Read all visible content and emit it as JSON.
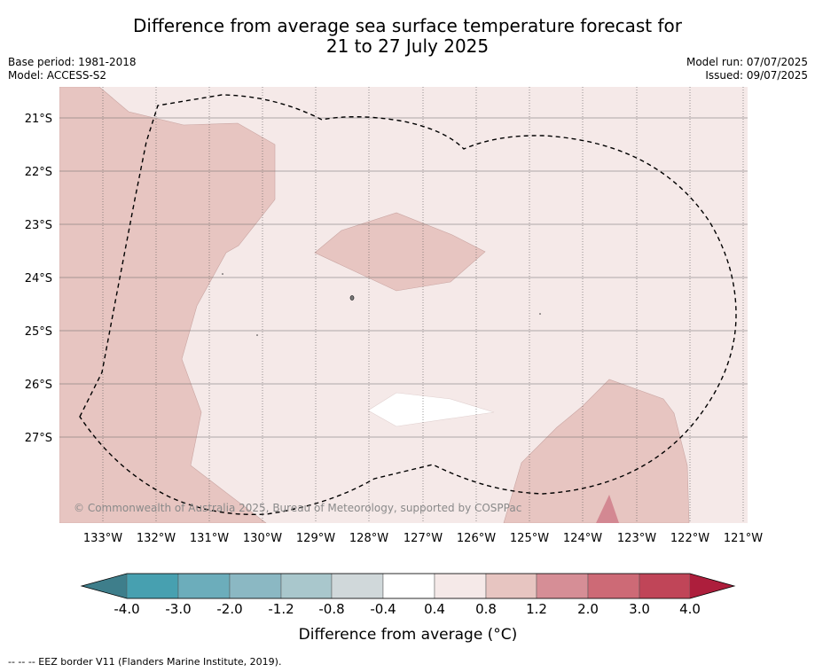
{
  "title_line1": "Difference from average sea surface temperature forecast for",
  "title_line2": "21 to 27 July 2025",
  "base_period": "Base period: 1981-2018",
  "model": "Model: ACCESS-S2",
  "model_run": "Model run: 07/07/2025",
  "issued": "Issued: 09/07/2025",
  "copyright": "© Commonwealth of Australia 2025, Bureau of Meteorology, supported by COSPPac",
  "footnote": "--  --  -- EEZ border V11 (Flanders Marine Institute, 2019).",
  "map": {
    "lat_labels": [
      "21°S",
      "22°S",
      "23°S",
      "24°S",
      "25°S",
      "26°S",
      "27°S"
    ],
    "lon_labels": [
      "133°W",
      "132°W",
      "131°W",
      "130°W",
      "129°W",
      "128°W",
      "127°W",
      "126°W",
      "125°W",
      "124°W",
      "123°W",
      "122°W",
      "121°W"
    ],
    "colors": {
      "background_0_4_to_0_8": "#f5e9e8",
      "band_0_8_to_1_2": "#e7c5c1",
      "band_neg0_4_to_0_4": "#ffffff",
      "band_2_0_to_3_0": "#d38892"
    }
  },
  "colorbar": {
    "title": "Difference from average (°C)",
    "tick_labels": [
      "-4.0",
      "-3.0",
      "-2.0",
      "-1.2",
      "-0.8",
      "-0.4",
      "0.4",
      "0.8",
      "1.2",
      "2.0",
      "3.0",
      "4.0"
    ],
    "colors": [
      "#3e7e8b",
      "#47a0b0",
      "#6cadbb",
      "#8bb8c3",
      "#a9c7cc",
      "#d0d8da",
      "#ffffff",
      "#f5e9e8",
      "#e7c5c1",
      "#d68e96",
      "#cd6a76",
      "#c04558",
      "#ad1e3c"
    ]
  }
}
